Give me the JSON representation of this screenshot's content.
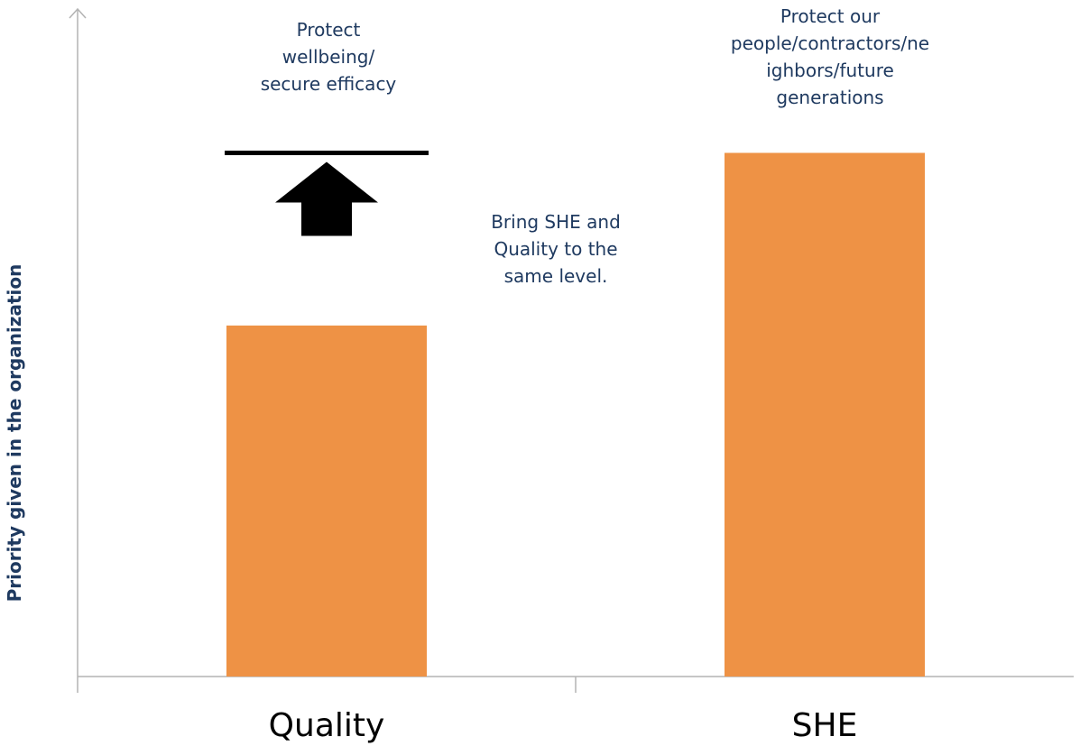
{
  "chart_data": {
    "type": "bar",
    "title": "",
    "xlabel": "",
    "ylabel": "Priority given in the organization",
    "categories": [
      "Quality",
      "SHE"
    ],
    "values": [
      61,
      91
    ],
    "target": {
      "category": "Quality",
      "value": 91
    },
    "ylim": [
      0,
      116
    ],
    "grid": false,
    "legend": "none",
    "bar_color": "#ee9245",
    "annotations": {
      "quality_goal": [
        "Protect",
        "wellbeing/",
        "secure efficacy"
      ],
      "she_goal": [
        "Protect our",
        "people/contractors/ne",
        "ighbors/future",
        "generations"
      ],
      "message": [
        "Bring SHE and",
        "Quality to the",
        "same level."
      ]
    }
  }
}
